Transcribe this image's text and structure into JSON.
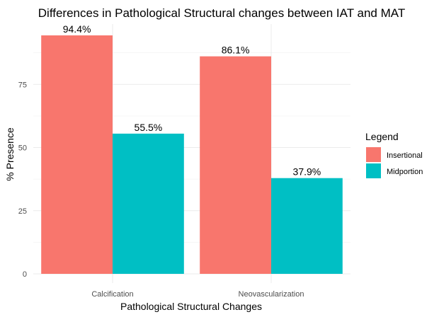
{
  "chart_data": {
    "type": "bar",
    "title": "Differences in Pathological Structural changes between IAT and MAT",
    "xlabel": "Pathological Structural Changes",
    "ylabel": "% Presence",
    "categories": [
      "Calcification",
      "Neovascularization"
    ],
    "series": [
      {
        "name": "Insertional",
        "color": "#F8766D",
        "values": [
          94.4,
          86.1
        ],
        "labels": [
          "94.4%",
          "86.1%"
        ]
      },
      {
        "name": "Midportion",
        "color": "#00BFC4",
        "values": [
          55.5,
          37.9
        ],
        "labels": [
          "55.5%",
          "37.9%"
        ]
      }
    ],
    "ylim": [
      0,
      100
    ],
    "yticks": [
      0,
      25,
      50,
      75
    ],
    "grid": true,
    "legend": {
      "title": "Legend",
      "position": "right"
    }
  }
}
